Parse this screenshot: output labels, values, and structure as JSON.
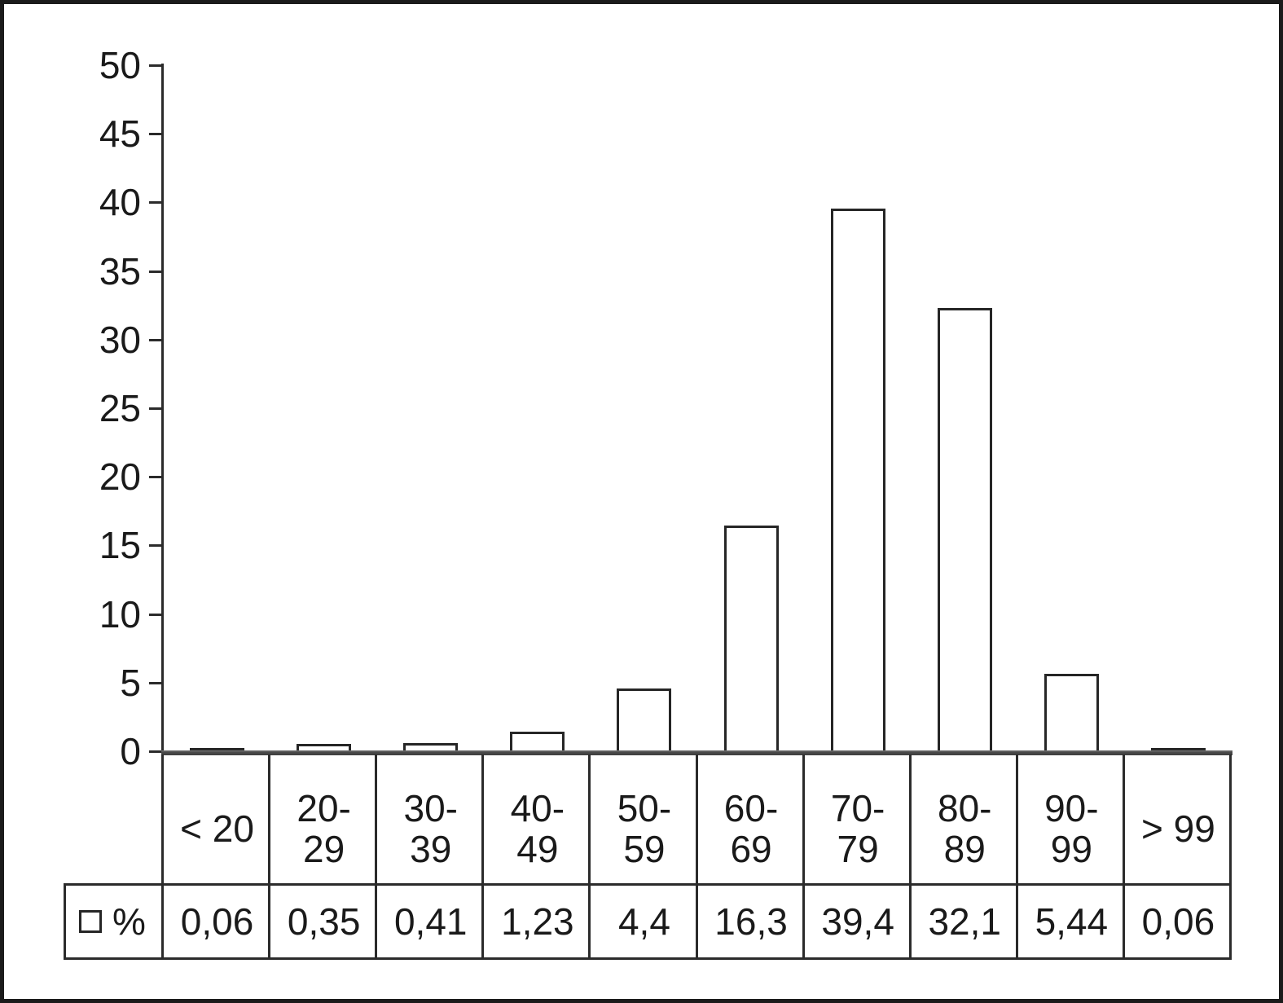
{
  "chart_data": {
    "type": "bar",
    "title": "",
    "xlabel": "",
    "ylabel": "",
    "categories": [
      "< 20",
      "20-\n29",
      "30-\n39",
      "40-\n49",
      "50-\n59",
      "60-\n69",
      "70-\n79",
      "80-\n89",
      "90-\n99",
      "> 99"
    ],
    "series": [
      {
        "name": "%",
        "values": [
          0.06,
          0.35,
          0.41,
          1.23,
          4.4,
          16.3,
          39.4,
          32.1,
          5.44,
          0.06
        ]
      }
    ],
    "value_labels": [
      "0,06",
      "0,35",
      "0,41",
      "1,23",
      "4,4",
      "16,3",
      "39,4",
      "32,1",
      "5,44",
      "0,06"
    ],
    "ylim": [
      0,
      50
    ],
    "yticks": [
      0,
      5,
      10,
      15,
      20,
      25,
      30,
      35,
      40,
      45,
      50
    ],
    "ytick_labels": [
      "0",
      "5",
      "10",
      "15",
      "20",
      "25",
      "30",
      "35",
      "40",
      "45",
      "50"
    ],
    "grid": false,
    "data_table": true,
    "legend_position": "table-left",
    "legend_label": "%",
    "colors": {
      "bar_fill": "#ffffff",
      "bar_border": "#262626",
      "axis": "#2b2b2b",
      "baseline": "#4a4a4a",
      "text": "#1a1a1a",
      "background": "#ffffff",
      "frame_border": "#1b1b1b"
    }
  }
}
